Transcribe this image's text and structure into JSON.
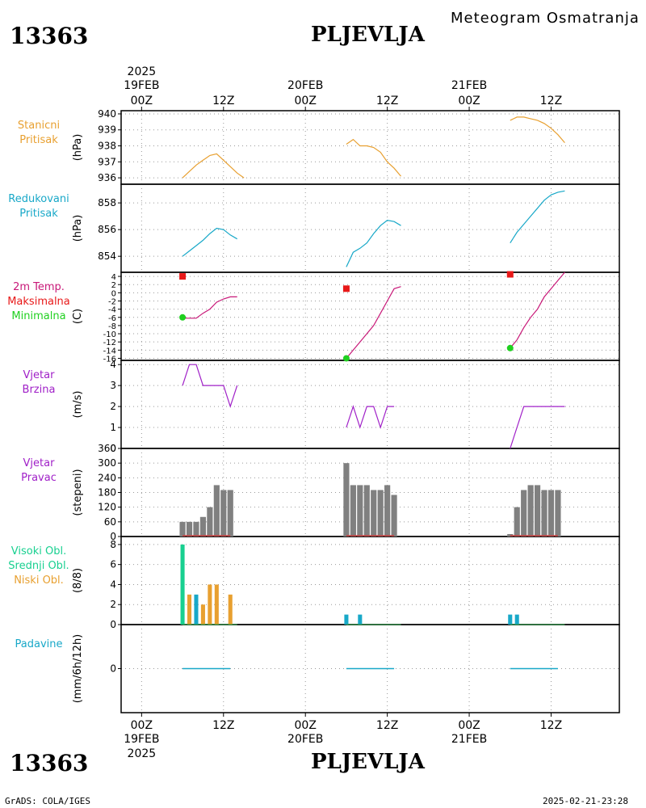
{
  "header": {
    "station_id": "13363",
    "station_name": "PLJEVLJA",
    "subtitle": "Meteogram Osmatranja",
    "year": "2025"
  },
  "footer": {
    "station_id": "13363",
    "station_name": "PLJEVLJA",
    "year": "2025",
    "credit": "GrADS: COLA/IGES",
    "timestamp": "2025-02-21-23:28"
  },
  "time_axis": {
    "labels": [
      {
        "t": 0,
        "hour": "00Z",
        "day": "19FEB"
      },
      {
        "t": 12,
        "hour": "12Z",
        "day": ""
      },
      {
        "t": 24,
        "hour": "00Z",
        "day": "20FEB"
      },
      {
        "t": 36,
        "hour": "12Z",
        "day": ""
      },
      {
        "t": 48,
        "hour": "00Z",
        "day": "21FEB"
      },
      {
        "t": 60,
        "hour": "12Z",
        "day": ""
      }
    ],
    "range_hours": [
      -3,
      70
    ]
  },
  "colors": {
    "stanicni": "#e8a030",
    "redukovani": "#18a8c8",
    "temp": "#c81878",
    "max": "#e81818",
    "min": "#20d020",
    "wind": "#a020c8",
    "dir": "#808080",
    "visoki": "#18d090",
    "srednji": "#18a8c8",
    "niski": "#e8a030",
    "padavine": "#18a8c8"
  },
  "panels": {
    "stanicni": {
      "label1": "Stanicni",
      "label2": "Pritisak",
      "unit": "(hPa)",
      "ticks": [
        "936",
        "937",
        "938",
        "939",
        "940"
      ]
    },
    "redukovani": {
      "label1": "Redukovani",
      "label2": "Pritisak",
      "unit": "(hPa)",
      "ticks": [
        "854",
        "856",
        "858"
      ]
    },
    "temp": {
      "label1": "2m Temp.",
      "label2": "Maksimalna",
      "label3": "Minimalna",
      "unit": "(C)",
      "ticks": [
        "4",
        "2",
        "0",
        "-2",
        "-4",
        "-6",
        "-8",
        "-10",
        "-12",
        "-14",
        "-16"
      ]
    },
    "brzina": {
      "label1": "Vjetar",
      "label2": "Brzina",
      "unit": "(m/s)",
      "ticks": [
        "0",
        "1",
        "2",
        "3",
        "4"
      ]
    },
    "pravac": {
      "label1": "Vjetar",
      "label2": "Pravac",
      "unit": "(stepeni)",
      "ticks": [
        "0",
        "60",
        "120",
        "180",
        "240",
        "300",
        "360"
      ]
    },
    "oblaci": {
      "label1": "Visoki Obl.",
      "label2": "Srednji Obl.",
      "label3": "Niski Obl.",
      "unit": "(8/8)",
      "ticks": [
        "0",
        "2",
        "4",
        "6",
        "8"
      ]
    },
    "padavine": {
      "label1": "Padavine",
      "unit": "(mm/6h/12h)",
      "ticks": [
        "0"
      ]
    }
  },
  "chart_data": {
    "type": "line",
    "x_units": "hours since 19FEB 00Z",
    "station_pressure": {
      "ylim": [
        935.6,
        940.2
      ],
      "segments": [
        [
          [
            6,
            936.0
          ],
          [
            7,
            936.4
          ],
          [
            8,
            936.8
          ],
          [
            9,
            937.1
          ],
          [
            10,
            937.4
          ],
          [
            11,
            937.5
          ],
          [
            12,
            937.1
          ],
          [
            13,
            936.7
          ],
          [
            14,
            936.3
          ],
          [
            15,
            936.0
          ]
        ],
        [
          [
            30,
            938.1
          ],
          [
            31,
            938.4
          ],
          [
            32,
            938.0
          ],
          [
            33,
            938.0
          ],
          [
            34,
            937.9
          ],
          [
            35,
            937.6
          ],
          [
            36,
            937.0
          ],
          [
            37,
            936.6
          ],
          [
            38,
            936.1
          ]
        ],
        [
          [
            54,
            939.6
          ],
          [
            55,
            939.8
          ],
          [
            56,
            939.8
          ],
          [
            57,
            939.7
          ],
          [
            58,
            939.6
          ],
          [
            59,
            939.4
          ],
          [
            60,
            939.1
          ],
          [
            61,
            938.7
          ],
          [
            62,
            938.2
          ]
        ]
      ]
    },
    "reduced_pressure": {
      "ylim": [
        852.8,
        859.4
      ],
      "segments": [
        [
          [
            6,
            854.0
          ],
          [
            7,
            854.4
          ],
          [
            8,
            854.8
          ],
          [
            9,
            855.2
          ],
          [
            10,
            855.7
          ],
          [
            11,
            856.1
          ],
          [
            12,
            856.0
          ],
          [
            13,
            855.6
          ],
          [
            14,
            855.3
          ]
        ],
        [
          [
            30,
            853.2
          ],
          [
            31,
            854.3
          ],
          [
            32,
            854.6
          ],
          [
            33,
            855.0
          ],
          [
            34,
            855.7
          ],
          [
            35,
            856.3
          ],
          [
            36,
            856.7
          ],
          [
            37,
            856.6
          ],
          [
            38,
            856.3
          ]
        ],
        [
          [
            54,
            855.0
          ],
          [
            55,
            855.8
          ],
          [
            56,
            856.4
          ],
          [
            57,
            857.0
          ],
          [
            58,
            857.6
          ],
          [
            59,
            858.2
          ],
          [
            60,
            858.6
          ],
          [
            61,
            858.8
          ],
          [
            62,
            858.9
          ]
        ]
      ]
    },
    "temperature": {
      "ylim": [
        -16.5,
        5
      ],
      "segments": [
        [
          [
            6,
            -6.2
          ],
          [
            7,
            -6.2
          ],
          [
            8,
            -6.2
          ],
          [
            9,
            -5.0
          ],
          [
            10,
            -4.0
          ],
          [
            11,
            -2.3
          ],
          [
            12,
            -1.5
          ],
          [
            13,
            -1.0
          ],
          [
            14,
            -1.0
          ]
        ],
        [
          [
            30,
            -16.0
          ],
          [
            31,
            -14.0
          ],
          [
            32,
            -12.0
          ],
          [
            33,
            -10.0
          ],
          [
            34,
            -8.0
          ],
          [
            35,
            -5.0
          ],
          [
            36,
            -2.0
          ],
          [
            37,
            1.0
          ],
          [
            38,
            1.5
          ]
        ],
        [
          [
            54,
            -13.5
          ],
          [
            55,
            -11.5
          ],
          [
            56,
            -8.5
          ],
          [
            57,
            -6.0
          ],
          [
            58,
            -4.0
          ],
          [
            59,
            -1.0
          ],
          [
            60,
            1.0
          ],
          [
            61,
            3.0
          ],
          [
            62,
            5.0
          ]
        ]
      ],
      "max_points": [
        [
          6,
          4.0
        ],
        [
          30,
          1.0
        ],
        [
          54,
          4.5
        ]
      ],
      "min_points": [
        [
          6,
          -6.0
        ],
        [
          30,
          -16.0
        ],
        [
          54,
          -13.5
        ]
      ]
    },
    "wind_speed": {
      "ylim": [
        0,
        4.2
      ],
      "segments": [
        [
          [
            6,
            3
          ],
          [
            7,
            4
          ],
          [
            8,
            4
          ],
          [
            9,
            3
          ],
          [
            10,
            3
          ],
          [
            11,
            3
          ],
          [
            12,
            3
          ],
          [
            13,
            2
          ],
          [
            14,
            3
          ]
        ],
        [
          [
            30,
            1
          ],
          [
            31,
            2
          ],
          [
            32,
            1
          ],
          [
            33,
            2
          ],
          [
            34,
            2
          ],
          [
            35,
            1
          ],
          [
            36,
            2
          ],
          [
            37,
            2
          ]
        ],
        [
          [
            54,
            0
          ],
          [
            55,
            1
          ],
          [
            56,
            2
          ],
          [
            57,
            2
          ],
          [
            58,
            2
          ],
          [
            59,
            2
          ],
          [
            60,
            2
          ],
          [
            61,
            2
          ],
          [
            62,
            2
          ]
        ]
      ]
    },
    "wind_direction": {
      "type": "bar",
      "ylim": [
        0,
        360
      ],
      "points": [
        [
          6,
          60
        ],
        [
          7,
          60
        ],
        [
          8,
          60
        ],
        [
          9,
          80
        ],
        [
          10,
          120
        ],
        [
          11,
          210
        ],
        [
          12,
          190
        ],
        [
          13,
          190
        ],
        [
          30,
          300
        ],
        [
          31,
          210
        ],
        [
          32,
          210
        ],
        [
          33,
          210
        ],
        [
          34,
          190
        ],
        [
          35,
          190
        ],
        [
          36,
          210
        ],
        [
          37,
          170
        ],
        [
          54,
          10
        ],
        [
          55,
          120
        ],
        [
          56,
          190
        ],
        [
          57,
          210
        ],
        [
          58,
          210
        ],
        [
          59,
          190
        ],
        [
          60,
          190
        ],
        [
          61,
          190
        ]
      ]
    },
    "clouds": {
      "type": "bar",
      "ylim": [
        0,
        8.8
      ],
      "high": [
        [
          6,
          8
        ]
      ],
      "middle": [
        [
          8,
          3
        ],
        [
          30,
          1
        ],
        [
          32,
          1
        ],
        [
          54,
          1
        ],
        [
          55,
          1
        ]
      ],
      "low": [
        [
          7,
          3
        ],
        [
          9,
          2
        ],
        [
          10,
          4
        ],
        [
          11,
          4
        ],
        [
          13,
          3
        ]
      ]
    },
    "precipitation": {
      "ylim": [
        -1,
        1
      ],
      "segments": [
        [
          [
            6,
            0
          ],
          [
            13,
            0
          ]
        ],
        [
          [
            30,
            0
          ],
          [
            37,
            0
          ]
        ],
        [
          [
            54,
            0
          ],
          [
            61,
            0
          ]
        ]
      ]
    }
  }
}
